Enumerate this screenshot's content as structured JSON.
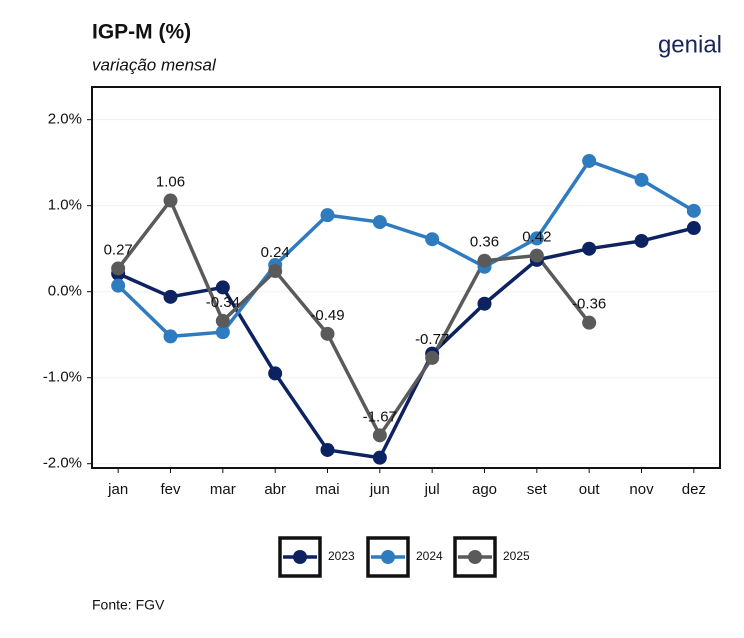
{
  "chart_data": {
    "type": "line",
    "title": "IGP-M (%)",
    "subtitle": "variação mensal",
    "logo": "genial",
    "source": "Fonte: FGV",
    "categories": [
      "jan",
      "fev",
      "mar",
      "abr",
      "mai",
      "jun",
      "jul",
      "ago",
      "set",
      "out",
      "nov",
      "dez"
    ],
    "series": [
      {
        "name": "2023",
        "color": "#0d2260",
        "values": [
          0.21,
          -0.06,
          0.05,
          -0.95,
          -1.84,
          -1.93,
          -0.72,
          -0.14,
          0.37,
          0.5,
          0.59,
          0.74
        ]
      },
      {
        "name": "2024",
        "color": "#2e7bbf",
        "values": [
          0.07,
          -0.52,
          -0.47,
          0.31,
          0.89,
          0.81,
          0.61,
          0.29,
          0.62,
          1.52,
          1.3,
          0.94
        ]
      },
      {
        "name": "2025",
        "color": "#5a5a5a",
        "values": [
          0.27,
          1.06,
          -0.34,
          0.24,
          -0.49,
          -1.67,
          -0.77,
          0.36,
          0.42,
          -0.36,
          null,
          null
        ],
        "data_labels": true
      }
    ],
    "ylim": [
      -2.05,
      2.38
    ],
    "yticks": [
      {
        "value": -2,
        "label": "-2.0%"
      },
      {
        "value": -1,
        "label": "-1.0%"
      },
      {
        "value": 0,
        "label": "0.0%"
      },
      {
        "value": 1,
        "label": "1.0%"
      },
      {
        "value": 2,
        "label": "2.0%"
      }
    ],
    "grid": true,
    "legend": "bottom"
  }
}
